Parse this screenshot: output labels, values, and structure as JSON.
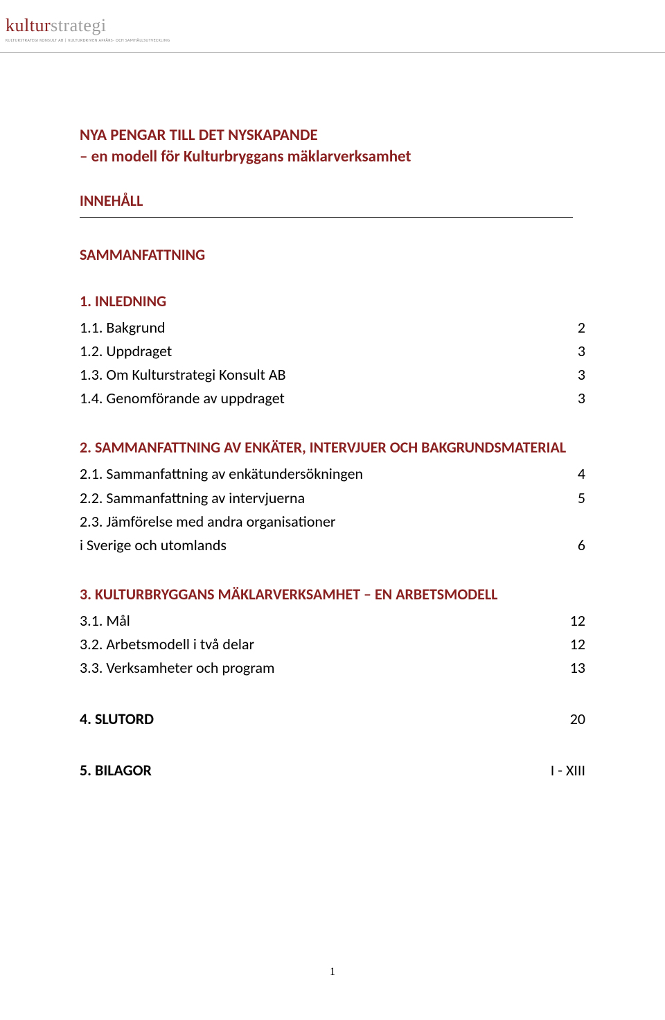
{
  "logo": {
    "word1": "kultur",
    "word2": "strategi",
    "subline": "KULTURSTRATEGI KONSULT AB | KULTURDRIVEN AFFÄRS- OCH SAMHÄLLSUTVECKLING"
  },
  "title_line1": "NYA PENGAR TILL DET NYSKAPANDE",
  "title_line2": "– en modell för Kulturbryggans mäklarverksamhet",
  "innehall_label": "INNEHÅLL",
  "sections": {
    "s0": {
      "heading": "SAMMANFATTNING"
    },
    "s1": {
      "heading": "1. INLEDNING",
      "items": [
        {
          "label": "1.1. Bakgrund",
          "page": "2"
        },
        {
          "label": "1.2. Uppdraget",
          "page": "3"
        },
        {
          "label": "1.3. Om Kulturstrategi Konsult AB",
          "page": "3"
        },
        {
          "label": "1.4. Genomförande av uppdraget",
          "page": "3"
        }
      ]
    },
    "s2": {
      "heading": "2. SAMMANFATTNING AV ENKÄTER, INTERVJUER OCH BAKGRUNDSMATERIAL",
      "items": [
        {
          "label": "2.1. Sammanfattning av enkätundersökningen",
          "page": "4"
        },
        {
          "label": "2.2. Sammanfattning av intervjuerna",
          "page": "5"
        },
        {
          "label": "2.3. Jämförelse med andra organisationer",
          "label2": "i Sverige och utomlands",
          "page": "6"
        }
      ]
    },
    "s3": {
      "heading": "3. KULTURBRYGGANS MÄKLARVERKSAMHET – EN ARBETSMODELL",
      "items": [
        {
          "label": "3.1. Mål",
          "page": "12"
        },
        {
          "label": "3.2. Arbetsmodell i två delar",
          "page": "12"
        },
        {
          "label": "3.3. Verksamheter och program",
          "page": "13"
        }
      ]
    },
    "s4": {
      "heading": "4. SLUTORD",
      "page": "20"
    },
    "s5": {
      "heading": "5. BILAGOR",
      "page": "I - XIII"
    }
  },
  "page_number": "1",
  "colors": {
    "accent": "#8a1f1f",
    "logo_grey": "#9e9e9e",
    "rule_grey": "#b0b0b0",
    "text": "#000000",
    "background": "#ffffff"
  },
  "typography": {
    "body_font": "Calibri",
    "title_size_pt": 17,
    "body_size_pt": 16
  }
}
